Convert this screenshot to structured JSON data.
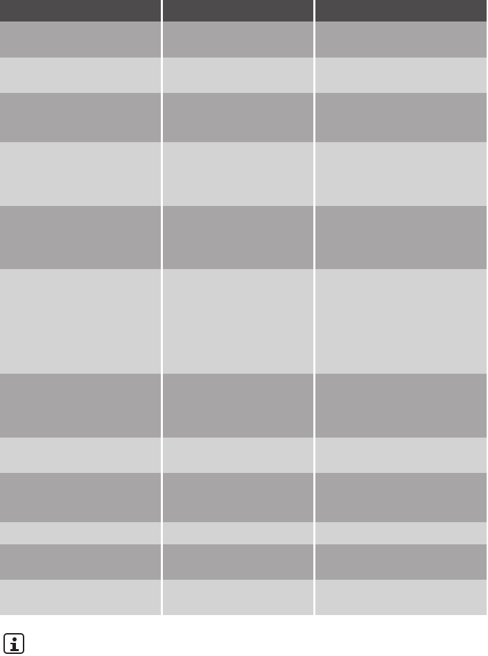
{
  "table": {
    "columns": 3,
    "header": [
      "",
      "",
      ""
    ],
    "rows": [
      {
        "shade": "dark",
        "cells": [
          "",
          "",
          ""
        ]
      },
      {
        "shade": "light",
        "cells": [
          "",
          "",
          ""
        ]
      },
      {
        "shade": "dark",
        "cells": [
          "",
          "",
          ""
        ]
      },
      {
        "shade": "light",
        "cells": [
          "",
          "",
          ""
        ]
      },
      {
        "shade": "dark",
        "cells": [
          "",
          "",
          ""
        ]
      },
      {
        "shade": "light",
        "cells": [
          "",
          "",
          ""
        ]
      },
      {
        "shade": "dark",
        "cells": [
          "",
          "",
          ""
        ]
      },
      {
        "shade": "light",
        "cells": [
          "",
          "",
          ""
        ]
      },
      {
        "shade": "dark",
        "cells": [
          "",
          "",
          ""
        ]
      },
      {
        "shade": "light",
        "cells": [
          "",
          "",
          ""
        ]
      },
      {
        "shade": "dark",
        "cells": [
          "",
          "",
          ""
        ]
      },
      {
        "shade": "light",
        "cells": [
          "",
          "",
          ""
        ]
      }
    ]
  },
  "colors": {
    "header": "#4d4b4c",
    "dark": "#a7a5a6",
    "light": "#d3d3d3"
  },
  "footer": {
    "icon": "info-icon"
  }
}
